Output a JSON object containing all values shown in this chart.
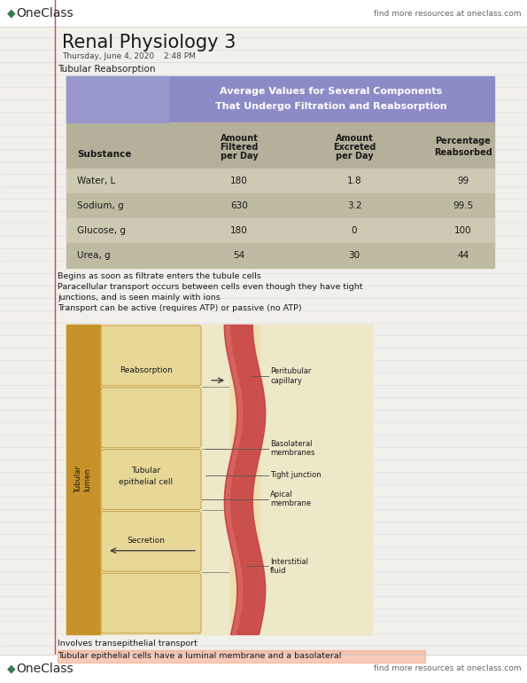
{
  "page_bg": "#f2f0eb",
  "line_color": "#c5cfe0",
  "line_color2": "#b8c8d8",
  "red_line_color": "#c83030",
  "title": "Renal Physiology 3",
  "date": "Thursday, June 4, 2020",
  "time": "2:48 PM",
  "oneclass_color": "#2a2a2a",
  "oneclass_green": "#3a7a50",
  "find_more_text": "find more resources at oneclass.com",
  "section_title": "Tubular Reabsorption",
  "table_header_bg": "#8b8bc8",
  "table_header_left_bg": "#9898cc",
  "table_subheader_bg": "#b5b09a",
  "table_row_bg1": "#cdc9b2",
  "table_row_bg2": "#bfbba2",
  "table_rows": [
    [
      "Water, L",
      "180",
      "1.8",
      "99"
    ],
    [
      "Sodium, g",
      "630",
      "3.2",
      "99.5"
    ],
    [
      "Glucose, g",
      "180",
      "0",
      "100"
    ],
    [
      "Urea, g",
      "54",
      "30",
      "44"
    ]
  ],
  "notes": [
    "Begins as soon as filtrate enters the tubule cells",
    "Paracellular transport occurs between cells even though they have tight",
    "junctions, and is seen mainly with ions",
    "Transport can be active (requires ATP) or passive (no ATP)"
  ],
  "bottom_notes": [
    "Involves transepithelial transport",
    "Tubular epithelial cells have a luminal membrane and a basolateral"
  ],
  "highlight_color": "#f5a080",
  "lumen_color": "#c8922a",
  "cell_color": "#e8d898",
  "cell_edge_color": "#c8a850",
  "diag_bg": "#ede0b0",
  "capillary_color": "#c84040",
  "interstitial_color": "#ede8c8"
}
